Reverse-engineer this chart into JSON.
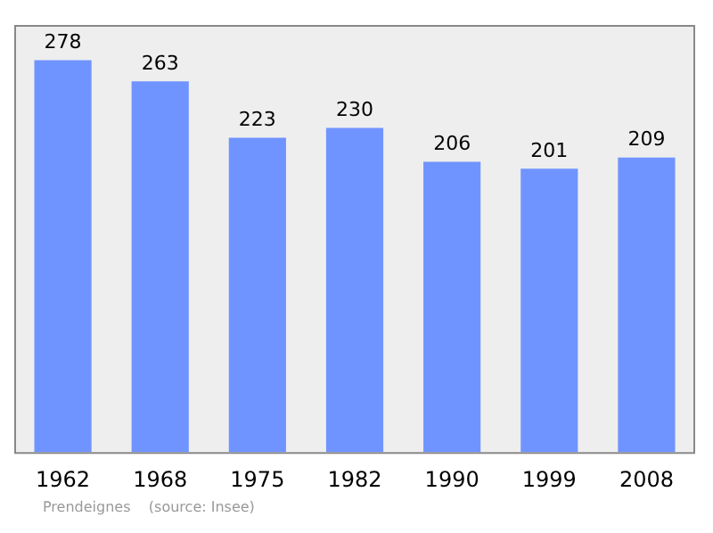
{
  "chart_data": {
    "type": "bar",
    "categories": [
      "1962",
      "1968",
      "1975",
      "1982",
      "1990",
      "1999",
      "2008"
    ],
    "values": [
      278,
      263,
      223,
      230,
      206,
      201,
      209
    ],
    "color": "#7094ff",
    "data_labels": true,
    "grid": false,
    "legend": false,
    "annotations": [
      "Prendeignes    (source: Insee)"
    ]
  }
}
